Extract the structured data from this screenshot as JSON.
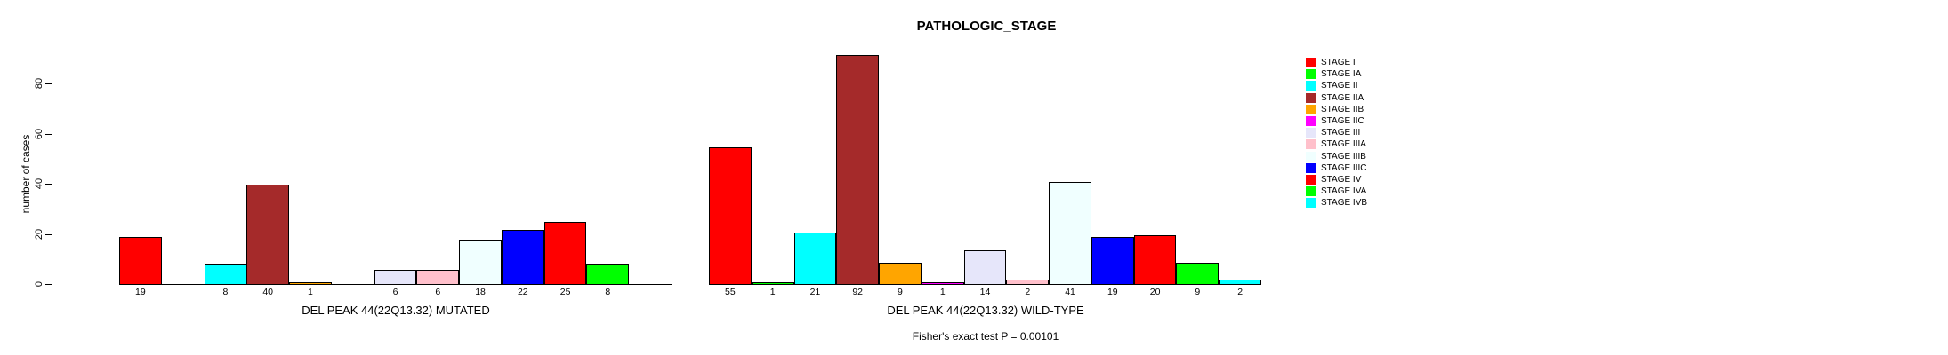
{
  "chart_data": {
    "type": "bar",
    "title": "PATHOLOGIC_STAGE",
    "ylabel": "number of cases",
    "footer": "Fisher's exact test P = 0.00101",
    "categories": [
      "STAGE I",
      "STAGE IA",
      "STAGE II",
      "STAGE IIA",
      "STAGE IIB",
      "STAGE IIC",
      "STAGE III",
      "STAGE IIIA",
      "STAGE IIIB",
      "STAGE IIIC",
      "STAGE IV",
      "STAGE IVA",
      "STAGE IVB"
    ],
    "colors": [
      "#FF0000",
      "#00FF00",
      "#00FFFF",
      "#A52A2A",
      "#FFA500",
      "#FF00FF",
      "#E6E6FA",
      "#FFC0CB",
      "#F0FFFF",
      "#0000FF",
      "#FF0000",
      "#00FF00",
      "#00FFFF"
    ],
    "groups": [
      {
        "label": "DEL PEAK 44(22Q13.32) MUTATED",
        "values": [
          19,
          0,
          8,
          40,
          1,
          0,
          6,
          6,
          18,
          22,
          25,
          8,
          0
        ]
      },
      {
        "label": "DEL PEAK 44(22Q13.32) WILD-TYPE",
        "values": [
          55,
          1,
          21,
          92,
          9,
          1,
          14,
          2,
          41,
          19,
          20,
          9,
          2
        ]
      }
    ],
    "yticks": [
      0,
      20,
      40,
      60,
      80
    ],
    "ylim": [
      0,
      95
    ],
    "grid": false,
    "legend_position": "right",
    "legend_entries": [
      "STAGE I",
      "STAGE IA",
      "STAGE II",
      "STAGE IIA",
      "STAGE IIB",
      "STAGE IIC",
      "STAGE III",
      "STAGE IIIA",
      "STAGE IIIB",
      "STAGE IIIC",
      "STAGE IV",
      "STAGE IVA",
      "STAGE IVB"
    ],
    "zero_values_unlabeled": true
  }
}
